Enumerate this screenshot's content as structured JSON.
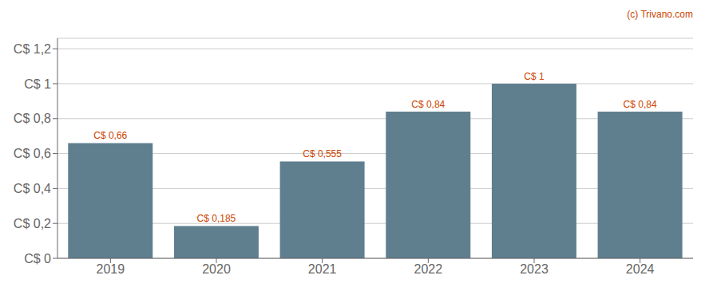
{
  "chart_data": {
    "type": "bar",
    "categories": [
      "2019",
      "2020",
      "2021",
      "2022",
      "2023",
      "2024"
    ],
    "values": [
      0.66,
      0.185,
      0.555,
      0.84,
      1.0,
      0.84
    ],
    "value_labels": [
      "C$ 0,66",
      "C$ 0,185",
      "C$ 0,555",
      "C$ 0,84",
      "C$ 1",
      "C$ 0,84"
    ],
    "data_labels": true,
    "color": "#5f7f8f",
    "ylim": [
      0,
      1.26
    ],
    "yticks": [
      {
        "value": 0,
        "label": "C$ 0"
      },
      {
        "value": 0.2,
        "label": "C$ 0,2"
      },
      {
        "value": 0.4,
        "label": "C$ 0,4"
      },
      {
        "value": 0.6,
        "label": "C$ 0,6"
      },
      {
        "value": 0.8,
        "label": "C$ 0,8"
      },
      {
        "value": 1.0,
        "label": "C$ 1"
      },
      {
        "value": 1.2,
        "label": "C$ 1,2"
      }
    ],
    "grid": true,
    "annotations": [
      "(c) Trivano.com"
    ]
  }
}
